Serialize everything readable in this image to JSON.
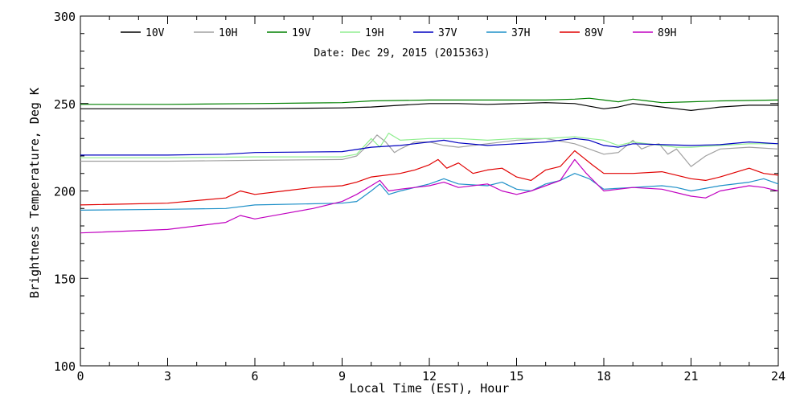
{
  "chart_data": {
    "type": "line",
    "title": "",
    "annotation": "Date: Dec 29, 2015 (2015363)",
    "xlabel": "Local Time (EST), Hour",
    "ylabel": "Brightness Temperature, Deg K",
    "xlim": [
      0,
      24
    ],
    "ylim": [
      100,
      300
    ],
    "xticks": [
      0,
      3,
      6,
      9,
      12,
      15,
      18,
      21,
      24
    ],
    "yticks": [
      100,
      150,
      200,
      250,
      300
    ],
    "grid": false,
    "legend_position": "top",
    "series": [
      {
        "name": "10V",
        "color": "#000000",
        "points": [
          [
            0,
            247
          ],
          [
            3,
            247
          ],
          [
            6,
            247
          ],
          [
            9,
            247.5
          ],
          [
            10,
            248
          ],
          [
            11,
            249
          ],
          [
            12,
            250
          ],
          [
            13,
            250
          ],
          [
            14,
            249.5
          ],
          [
            15,
            250
          ],
          [
            16,
            250.5
          ],
          [
            17,
            250
          ],
          [
            18,
            247
          ],
          [
            18.5,
            248
          ],
          [
            19,
            250
          ],
          [
            19.5,
            249
          ],
          [
            20,
            248
          ],
          [
            20.5,
            247
          ],
          [
            21,
            246
          ],
          [
            21.5,
            247
          ],
          [
            22,
            248
          ],
          [
            23,
            249
          ],
          [
            24,
            249
          ]
        ]
      },
      {
        "name": "10H",
        "color": "#a0a0a0",
        "points": [
          [
            0,
            217
          ],
          [
            3,
            217
          ],
          [
            6,
            217.5
          ],
          [
            9,
            218
          ],
          [
            9.5,
            220
          ],
          [
            10,
            228
          ],
          [
            10.2,
            232
          ],
          [
            10.5,
            228
          ],
          [
            10.8,
            222
          ],
          [
            11,
            224
          ],
          [
            11.5,
            228
          ],
          [
            12,
            228
          ],
          [
            12.5,
            226
          ],
          [
            13,
            225
          ],
          [
            14,
            227
          ],
          [
            15,
            229
          ],
          [
            16,
            230
          ],
          [
            17,
            227
          ],
          [
            17.5,
            224
          ],
          [
            18,
            221
          ],
          [
            18.5,
            222
          ],
          [
            19,
            229
          ],
          [
            19.3,
            224
          ],
          [
            19.6,
            226
          ],
          [
            19.9,
            227
          ],
          [
            20.2,
            221
          ],
          [
            20.5,
            224
          ],
          [
            20.8,
            218
          ],
          [
            21,
            214
          ],
          [
            21.5,
            220
          ],
          [
            22,
            224
          ],
          [
            23,
            225
          ],
          [
            24,
            224
          ]
        ]
      },
      {
        "name": "19V",
        "color": "#008000",
        "points": [
          [
            0,
            249.5
          ],
          [
            3,
            249.5
          ],
          [
            6,
            250
          ],
          [
            9,
            250.5
          ],
          [
            10,
            251.5
          ],
          [
            12,
            252
          ],
          [
            14,
            252
          ],
          [
            16,
            252
          ],
          [
            17,
            252.5
          ],
          [
            17.5,
            253
          ],
          [
            18,
            252
          ],
          [
            18.5,
            251
          ],
          [
            19,
            252.5
          ],
          [
            19.5,
            251.5
          ],
          [
            20,
            250.5
          ],
          [
            21,
            251
          ],
          [
            22,
            251.5
          ],
          [
            24,
            252
          ]
        ]
      },
      {
        "name": "19H",
        "color": "#90ee90",
        "points": [
          [
            0,
            219
          ],
          [
            3,
            219
          ],
          [
            6,
            219.5
          ],
          [
            9,
            219.5
          ],
          [
            9.5,
            221
          ],
          [
            10,
            230
          ],
          [
            10.3,
            225
          ],
          [
            10.6,
            233
          ],
          [
            11,
            229
          ],
          [
            12,
            230
          ],
          [
            13,
            230
          ],
          [
            14,
            229
          ],
          [
            15,
            230
          ],
          [
            16,
            230
          ],
          [
            17,
            231
          ],
          [
            17.5,
            230
          ],
          [
            18,
            229
          ],
          [
            18.5,
            226
          ],
          [
            19,
            228
          ],
          [
            19.5,
            227
          ],
          [
            20,
            226
          ],
          [
            20.5,
            225
          ],
          [
            21,
            225
          ],
          [
            22,
            226
          ],
          [
            23,
            227
          ],
          [
            24,
            227
          ]
        ]
      },
      {
        "name": "37V",
        "color": "#0000c0",
        "points": [
          [
            0,
            220.5
          ],
          [
            3,
            220.5
          ],
          [
            5,
            221
          ],
          [
            6,
            222
          ],
          [
            9,
            222.5
          ],
          [
            10,
            225
          ],
          [
            11,
            226
          ],
          [
            12,
            228
          ],
          [
            12.5,
            229
          ],
          [
            13,
            227.5
          ],
          [
            14,
            226
          ],
          [
            15,
            227
          ],
          [
            16,
            228
          ],
          [
            17,
            230
          ],
          [
            17.5,
            229
          ],
          [
            18,
            226
          ],
          [
            18.5,
            225
          ],
          [
            19,
            227
          ],
          [
            20,
            226.5
          ],
          [
            21,
            226
          ],
          [
            22,
            226.5
          ],
          [
            23,
            228
          ],
          [
            24,
            227
          ]
        ]
      },
      {
        "name": "37H",
        "color": "#1e90c8",
        "points": [
          [
            0,
            189
          ],
          [
            3,
            189.5
          ],
          [
            5,
            190
          ],
          [
            6,
            192
          ],
          [
            9,
            193
          ],
          [
            9.5,
            194
          ],
          [
            10,
            200
          ],
          [
            10.3,
            204
          ],
          [
            10.6,
            198
          ],
          [
            11,
            200
          ],
          [
            11.5,
            202
          ],
          [
            12,
            204
          ],
          [
            12.5,
            207
          ],
          [
            13,
            204
          ],
          [
            14,
            203
          ],
          [
            14.5,
            205
          ],
          [
            15,
            201
          ],
          [
            15.5,
            200
          ],
          [
            16,
            204
          ],
          [
            16.5,
            206
          ],
          [
            17,
            210
          ],
          [
            17.5,
            207
          ],
          [
            18,
            201
          ],
          [
            19,
            202
          ],
          [
            20,
            203
          ],
          [
            20.5,
            202
          ],
          [
            21,
            200
          ],
          [
            22,
            203
          ],
          [
            23,
            205
          ],
          [
            23.5,
            207
          ],
          [
            24,
            204
          ]
        ]
      },
      {
        "name": "89V",
        "color": "#e00000",
        "points": [
          [
            0,
            192
          ],
          [
            3,
            193
          ],
          [
            5,
            196
          ],
          [
            5.5,
            200
          ],
          [
            6,
            198
          ],
          [
            7,
            200
          ],
          [
            8,
            202
          ],
          [
            9,
            203
          ],
          [
            9.5,
            205
          ],
          [
            10,
            208
          ],
          [
            11,
            210
          ],
          [
            11.5,
            212
          ],
          [
            12,
            215
          ],
          [
            12.3,
            218
          ],
          [
            12.6,
            213
          ],
          [
            13,
            216
          ],
          [
            13.5,
            210
          ],
          [
            14,
            212
          ],
          [
            14.5,
            213
          ],
          [
            15,
            208
          ],
          [
            15.5,
            206
          ],
          [
            16,
            212
          ],
          [
            16.5,
            214
          ],
          [
            17,
            223
          ],
          [
            17.3,
            219
          ],
          [
            17.6,
            215
          ],
          [
            18,
            210
          ],
          [
            19,
            210
          ],
          [
            20,
            211
          ],
          [
            21,
            207
          ],
          [
            21.5,
            206
          ],
          [
            22,
            208
          ],
          [
            23,
            213
          ],
          [
            23.5,
            210
          ],
          [
            24,
            209
          ]
        ]
      },
      {
        "name": "89H",
        "color": "#c000c0",
        "points": [
          [
            0,
            176
          ],
          [
            3,
            178
          ],
          [
            5,
            182
          ],
          [
            5.5,
            186
          ],
          [
            6,
            184
          ],
          [
            7,
            187
          ],
          [
            8,
            190
          ],
          [
            9,
            194
          ],
          [
            9.5,
            198
          ],
          [
            10,
            203
          ],
          [
            10.3,
            206
          ],
          [
            10.6,
            200
          ],
          [
            11,
            201
          ],
          [
            11.5,
            202
          ],
          [
            12,
            203
          ],
          [
            12.5,
            205
          ],
          [
            13,
            202
          ],
          [
            14,
            204
          ],
          [
            14.5,
            200
          ],
          [
            15,
            198
          ],
          [
            15.5,
            200
          ],
          [
            16,
            203
          ],
          [
            16.5,
            206
          ],
          [
            17,
            218
          ],
          [
            17.4,
            210
          ],
          [
            18,
            200
          ],
          [
            19,
            202
          ],
          [
            20,
            201
          ],
          [
            21,
            197
          ],
          [
            21.5,
            196
          ],
          [
            22,
            200
          ],
          [
            23,
            203
          ],
          [
            23.5,
            202
          ],
          [
            24,
            200
          ]
        ]
      }
    ]
  }
}
